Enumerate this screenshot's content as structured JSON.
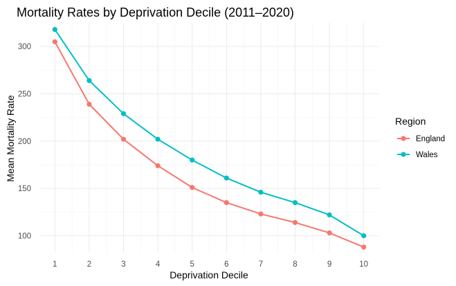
{
  "chart_data": {
    "type": "line",
    "title": "Mortality Rates by Deprivation Decile (2011–2020)",
    "xlabel": "Deprivation Decile",
    "ylabel": "Mean Mortality Rate",
    "x": [
      1,
      2,
      3,
      4,
      5,
      6,
      7,
      8,
      9,
      10
    ],
    "xlim": [
      0.55,
      10.45
    ],
    "ylim": [
      82,
      325
    ],
    "yticks": [
      100,
      150,
      200,
      250,
      300
    ],
    "grid": true,
    "legend": {
      "title": "Region",
      "position": "right"
    },
    "series": [
      {
        "name": "England",
        "color": "#F8766D",
        "values": [
          305,
          239,
          202,
          174,
          151,
          135,
          123,
          114,
          103,
          88
        ]
      },
      {
        "name": "Wales",
        "color": "#00BFC4",
        "values": [
          318,
          264,
          229,
          202,
          180,
          161,
          146,
          135,
          122,
          100
        ]
      }
    ]
  }
}
